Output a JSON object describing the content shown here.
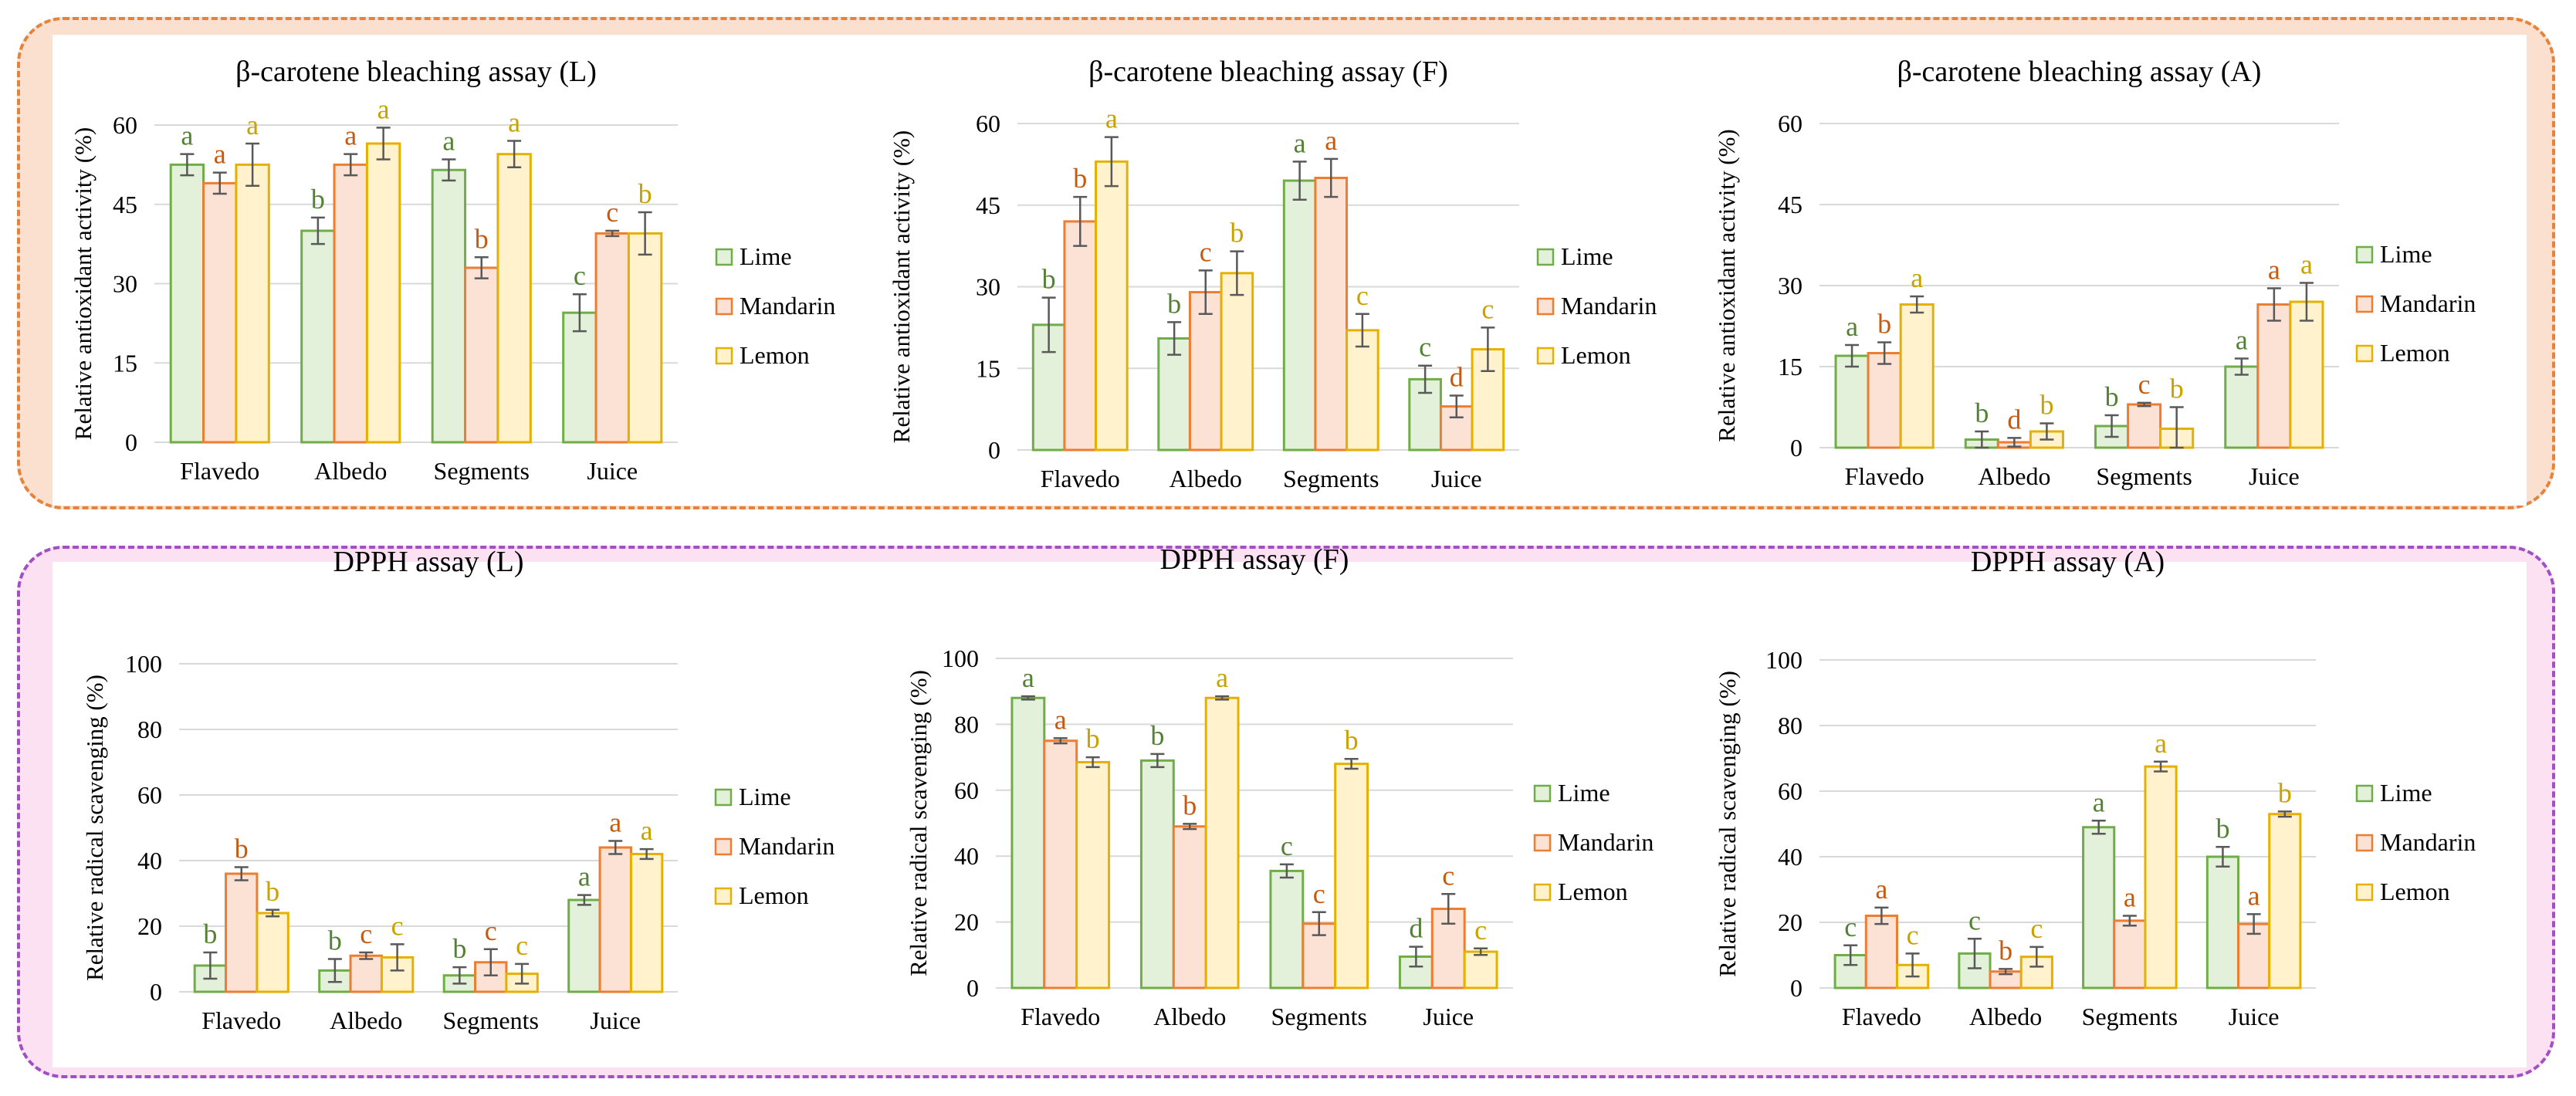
{
  "colors": {
    "lime_fill": "#e3f1da",
    "lime_stroke": "#70ad47",
    "lime_text": "#548235",
    "mandarin_fill": "#fbe2d5",
    "mandarin_stroke": "#ed7d31",
    "mandarin_text": "#c55a11",
    "lemon_fill": "#fff2cc",
    "lemon_stroke": "#e6b000",
    "lemon_text": "#c9a200",
    "grid": "#d9d9d9",
    "axis_text": "#000000",
    "error_bar": "#595959"
  },
  "chart_data": [
    {
      "id": "carotene-L",
      "type": "bar",
      "title": "β-carotene bleaching assay (L)",
      "ylabel": "Relative antioxidant activity (%)",
      "xlabel": "",
      "ylim": [
        0,
        60
      ],
      "yticks": [
        "0",
        "15",
        "30",
        "45",
        "60"
      ],
      "categories": [
        "Flavedo",
        "Albedo",
        "Segments",
        "Juice"
      ],
      "legend": [
        "Lime",
        "Mandarin",
        "Lemon"
      ],
      "legend_position": "right",
      "series": [
        {
          "name": "Lime",
          "values": [
            52.5,
            40,
            51.5,
            24.5
          ],
          "errors": [
            2,
            2.5,
            2,
            3.5
          ],
          "labels": [
            "a",
            "b",
            "a",
            "c"
          ]
        },
        {
          "name": "Mandarin",
          "values": [
            49,
            52.5,
            33,
            39.5
          ],
          "errors": [
            2,
            2,
            2,
            0.5
          ],
          "labels": [
            "a",
            "a",
            "b",
            "c"
          ]
        },
        {
          "name": "Lemon",
          "values": [
            52.5,
            56.5,
            54.5,
            39.5
          ],
          "errors": [
            4,
            3,
            2.5,
            4
          ],
          "labels": [
            "a",
            "a",
            "a",
            "b"
          ]
        }
      ]
    },
    {
      "id": "carotene-F",
      "type": "bar",
      "title": "β-carotene bleaching assay (F)",
      "ylabel": "Relative antioxidant activity (%)",
      "xlabel": "",
      "ylim": [
        0,
        60
      ],
      "yticks": [
        "0",
        "15",
        "30",
        "45",
        "60"
      ],
      "categories": [
        "Flavedo",
        "Albedo",
        "Segments",
        "Juice"
      ],
      "legend": [
        "Lime",
        "Mandarin",
        "Lemon"
      ],
      "legend_position": "right",
      "series": [
        {
          "name": "Lime",
          "values": [
            23,
            20.5,
            49.5,
            13
          ],
          "errors": [
            5,
            3,
            3.5,
            2.5
          ],
          "labels": [
            "b",
            "b",
            "a",
            "c"
          ]
        },
        {
          "name": "Mandarin",
          "values": [
            42,
            29,
            50,
            8
          ],
          "errors": [
            4.5,
            4,
            3.5,
            2
          ],
          "labels": [
            "b",
            "c",
            "a",
            "d"
          ]
        },
        {
          "name": "Lemon",
          "values": [
            53,
            32.5,
            22,
            18.5
          ],
          "errors": [
            4.5,
            4,
            3,
            4
          ],
          "labels": [
            "a",
            "b",
            "c",
            "c"
          ]
        }
      ]
    },
    {
      "id": "carotene-A",
      "type": "bar",
      "title": "β-carotene bleaching assay (A)",
      "ylabel": "Relative antioxidant activity (%)",
      "xlabel": "",
      "ylim": [
        0,
        60
      ],
      "yticks": [
        "0",
        "15",
        "30",
        "45",
        "60"
      ],
      "categories": [
        "Flavedo",
        "Albedo",
        "Segments",
        "Juice"
      ],
      "legend": [
        "Lime",
        "Mandarin",
        "Lemon"
      ],
      "legend_position": "right",
      "series": [
        {
          "name": "Lime",
          "values": [
            17,
            1.5,
            4,
            15
          ],
          "errors": [
            2,
            1.5,
            2,
            1.5
          ],
          "labels": [
            "a",
            "b",
            "b",
            "a"
          ]
        },
        {
          "name": "Mandarin",
          "values": [
            17.5,
            1,
            8,
            26.5
          ],
          "errors": [
            2,
            0.8,
            0.3,
            3
          ],
          "labels": [
            "b",
            "d",
            "c",
            "a"
          ]
        },
        {
          "name": "Lemon",
          "values": [
            26.5,
            3,
            3.5,
            27
          ],
          "errors": [
            1.5,
            1.5,
            4,
            3.5
          ],
          "labels": [
            "a",
            "b",
            "b",
            "a"
          ]
        }
      ]
    },
    {
      "id": "dpph-L",
      "type": "bar",
      "title": "DPPH assay (L)",
      "ylabel": "Relative radical scavenging (%)",
      "xlabel": "",
      "ylim": [
        0,
        100
      ],
      "yticks": [
        "0",
        "20",
        "40",
        "60",
        "80",
        "100"
      ],
      "categories": [
        "Flavedo",
        "Albedo",
        "Segments",
        "Juice"
      ],
      "legend": [
        "Lime",
        "Mandarin",
        "Lemon"
      ],
      "legend_position": "right",
      "series": [
        {
          "name": "Lime",
          "values": [
            8,
            6.5,
            5,
            28
          ],
          "errors": [
            4,
            3.5,
            2.5,
            1.5
          ],
          "labels": [
            "b",
            "b",
            "b",
            "a"
          ]
        },
        {
          "name": "Mandarin",
          "values": [
            36,
            11,
            9,
            44
          ],
          "errors": [
            2,
            1,
            4,
            2
          ],
          "labels": [
            "b",
            "c",
            "c",
            "a"
          ]
        },
        {
          "name": "Lemon",
          "values": [
            24,
            10.5,
            5.5,
            42
          ],
          "errors": [
            1,
            4,
            3,
            1.5
          ],
          "labels": [
            "b",
            "c",
            "c",
            "a"
          ]
        }
      ]
    },
    {
      "id": "dpph-F",
      "type": "bar",
      "title": "DPPH assay (F)",
      "ylabel": "Relative radical scavenging (%)",
      "xlabel": "",
      "ylim": [
        0,
        100
      ],
      "yticks": [
        "0",
        "20",
        "40",
        "60",
        "80",
        "100"
      ],
      "categories": [
        "Flavedo",
        "Albedo",
        "Segments",
        "Juice"
      ],
      "legend": [
        "Lime",
        "Mandarin",
        "Lemon"
      ],
      "legend_position": "right",
      "series": [
        {
          "name": "Lime",
          "values": [
            88,
            69,
            35.5,
            9.5
          ],
          "errors": [
            0.5,
            2,
            2,
            3
          ],
          "labels": [
            "a",
            "b",
            "c",
            "d"
          ]
        },
        {
          "name": "Mandarin",
          "values": [
            75,
            49,
            19.5,
            24
          ],
          "errors": [
            0.8,
            0.8,
            3.5,
            4.5
          ],
          "labels": [
            "a",
            "b",
            "c",
            "c"
          ]
        },
        {
          "name": "Lemon",
          "values": [
            68.5,
            88,
            68,
            11
          ],
          "errors": [
            1.5,
            0.5,
            1.5,
            1
          ],
          "labels": [
            "b",
            "a",
            "b",
            "c"
          ]
        }
      ]
    },
    {
      "id": "dpph-A",
      "type": "bar",
      "title": "DPPH assay (A)",
      "ylabel": "Relative radical scavenging (%)",
      "xlabel": "",
      "ylim": [
        0,
        100
      ],
      "yticks": [
        "0",
        "20",
        "40",
        "60",
        "80",
        "100"
      ],
      "categories": [
        "Flavedo",
        "Albedo",
        "Segments",
        "Juice"
      ],
      "legend": [
        "Lime",
        "Mandarin",
        "Lemon"
      ],
      "legend_position": "right",
      "series": [
        {
          "name": "Lime",
          "values": [
            10,
            10.5,
            49,
            40
          ],
          "errors": [
            3,
            4.5,
            2,
            3
          ],
          "labels": [
            "c",
            "c",
            "a",
            "b"
          ]
        },
        {
          "name": "Mandarin",
          "values": [
            22,
            5,
            20.5,
            19.5
          ],
          "errors": [
            2.5,
            0.8,
            1.5,
            3
          ],
          "labels": [
            "a",
            "b",
            "a",
            "a"
          ]
        },
        {
          "name": "Lemon",
          "values": [
            7,
            9.5,
            67.5,
            53
          ],
          "errors": [
            3.5,
            3,
            1.5,
            0.8
          ],
          "labels": [
            "c",
            "c",
            "a",
            "b"
          ]
        }
      ]
    }
  ]
}
